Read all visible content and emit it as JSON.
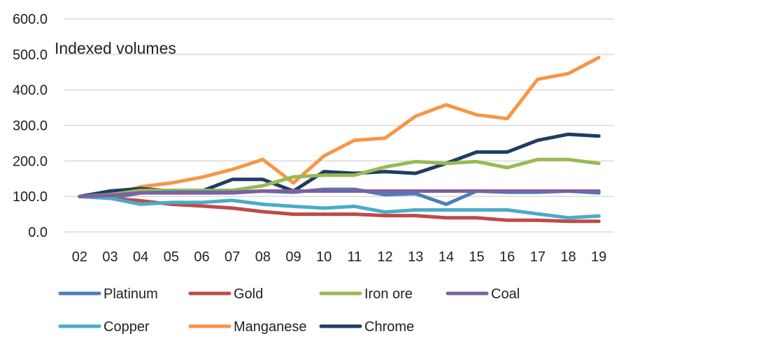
{
  "chart_data": {
    "type": "line",
    "title": "Indexed volumes",
    "xlabel": "",
    "ylabel": "",
    "ylim": [
      0,
      600
    ],
    "y_ticks": [
      "0.0",
      "100.0",
      "200.0",
      "300.0",
      "400.0",
      "500.0",
      "600.0"
    ],
    "grid": true,
    "legend_position": "bottom",
    "categories": [
      "02",
      "03",
      "04",
      "05",
      "06",
      "07",
      "08",
      "09",
      "10",
      "11",
      "12",
      "13",
      "14",
      "15",
      "16",
      "17",
      "18",
      "19"
    ],
    "series": [
      {
        "name": "Platinum",
        "color": "#4a7ebb",
        "values": [
          100,
          95,
          110,
          112,
          112,
          112,
          115,
          112,
          120,
          120,
          105,
          108,
          78,
          115,
          112,
          112,
          115,
          110
        ]
      },
      {
        "name": "Gold",
        "color": "#be4b48",
        "values": [
          100,
          95,
          88,
          78,
          73,
          67,
          57,
          50,
          50,
          50,
          46,
          46,
          40,
          40,
          33,
          33,
          30,
          30
        ]
      },
      {
        "name": "Iron ore",
        "color": "#98b954",
        "values": [
          100,
          105,
          117,
          117,
          117,
          117,
          130,
          155,
          160,
          160,
          183,
          198,
          193,
          198,
          181,
          204,
          204,
          193
        ]
      },
      {
        "name": "Coal",
        "color": "#7d60a0",
        "values": [
          100,
          103,
          110,
          110,
          110,
          110,
          115,
          115,
          115,
          115,
          115,
          115,
          115,
          115,
          115,
          115,
          115,
          115
        ]
      },
      {
        "name": "Copper",
        "color": "#4bacc6",
        "values": [
          100,
          95,
          78,
          83,
          83,
          89,
          78,
          72,
          67,
          72,
          56,
          62,
          62,
          62,
          62,
          51,
          40,
          45
        ]
      },
      {
        "name": "Manganese",
        "color": "#f79646",
        "values": [
          100,
          105,
          127,
          138,
          154,
          176,
          204,
          138,
          214,
          258,
          264,
          326,
          358,
          330,
          319,
          430,
          446,
          491
        ]
      },
      {
        "name": "Chrome",
        "color": "#1f3d62",
        "values": [
          100,
          115,
          122,
          115,
          115,
          148,
          148,
          115,
          170,
          165,
          170,
          165,
          193,
          225,
          225,
          258,
          275,
          270
        ]
      }
    ]
  }
}
